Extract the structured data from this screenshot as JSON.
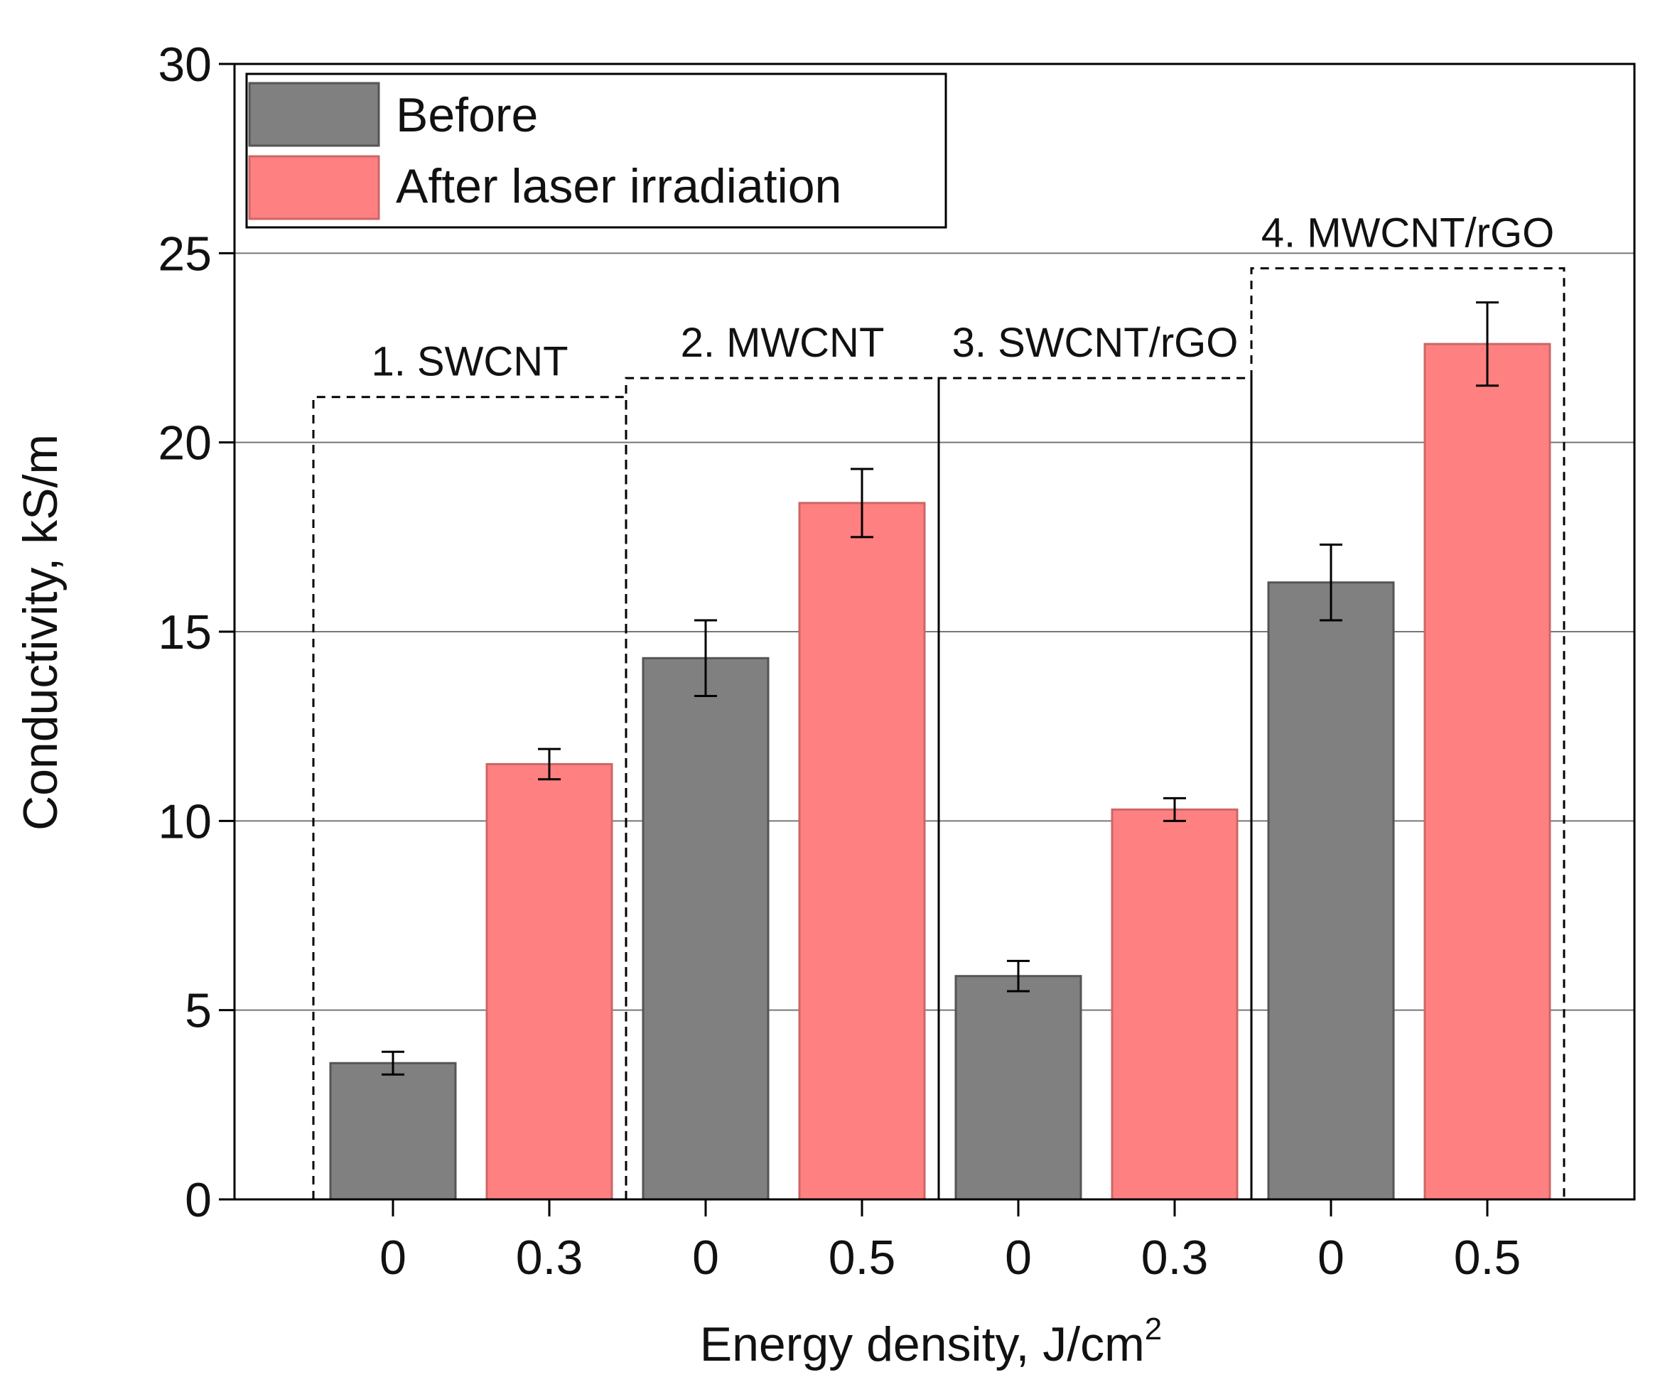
{
  "chart_data": {
    "type": "bar",
    "title": "",
    "xlabel": "Energy density, J/cm",
    "xlabel_superscript": "2",
    "ylabel": "Conductivity, kS/m",
    "ylim": [
      0,
      30
    ],
    "yticks": [
      0,
      5,
      10,
      15,
      20,
      25,
      30
    ],
    "grid": true,
    "legend_position": "top-left",
    "categories": [
      "0",
      "0.3",
      "0",
      "0.5",
      "0",
      "0.3",
      "0",
      "0.5"
    ],
    "series": [
      {
        "name": "Before",
        "color": "#808080"
      },
      {
        "name": "After laser irradiation",
        "color": "#ff8080"
      }
    ],
    "bars": [
      {
        "label": "0",
        "series": "Before",
        "value": 3.6,
        "error": 0.3
      },
      {
        "label": "0.3",
        "series": "After laser irradiation",
        "value": 11.5,
        "error": 0.4
      },
      {
        "label": "0",
        "series": "Before",
        "value": 14.3,
        "error": 1.0
      },
      {
        "label": "0.5",
        "series": "After laser irradiation",
        "value": 18.4,
        "error": 0.9
      },
      {
        "label": "0",
        "series": "Before",
        "value": 5.9,
        "error": 0.4
      },
      {
        "label": "0.3",
        "series": "After laser irradiation",
        "value": 10.3,
        "error": 0.3
      },
      {
        "label": "0",
        "series": "Before",
        "value": 16.3,
        "error": 1.0
      },
      {
        "label": "0.5",
        "series": "After laser irradiation",
        "value": 22.6,
        "error": 1.1
      }
    ],
    "groups": [
      {
        "name": "1. SWCNT",
        "bars": [
          0,
          1
        ],
        "box_top": 21.2
      },
      {
        "name": "2. MWCNT",
        "bars": [
          2,
          3
        ],
        "box_top": 21.7
      },
      {
        "name": "3. SWCNT/rGO",
        "bars": [
          4,
          5
        ],
        "box_top": 21.7
      },
      {
        "name": "4. MWCNT/rGO",
        "bars": [
          6,
          7
        ],
        "box_top": 24.6
      }
    ]
  }
}
